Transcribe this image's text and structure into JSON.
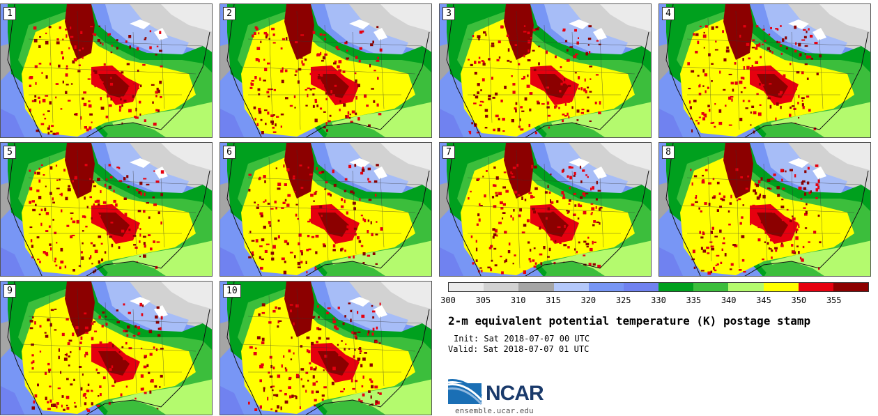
{
  "panels": [
    {
      "label": "1"
    },
    {
      "label": "2"
    },
    {
      "label": "3"
    },
    {
      "label": "4"
    },
    {
      "label": "5"
    },
    {
      "label": "6"
    },
    {
      "label": "7"
    },
    {
      "label": "8"
    },
    {
      "label": "9"
    },
    {
      "label": "10"
    }
  ],
  "colorbar": {
    "colors": [
      "#ebebeb",
      "#d2d2d2",
      "#a5a5a5",
      "#b4c8fa",
      "#7896f5",
      "#7082f0",
      "#00a01e",
      "#3cbe3c",
      "#b4fa6e",
      "#ffff00",
      "#e6000f",
      "#8c0000"
    ],
    "ticks": [
      "300",
      "305",
      "310",
      "315",
      "320",
      "325",
      "330",
      "335",
      "340",
      "345",
      "350",
      "355"
    ]
  },
  "title": "2-m equivalent potential temperature (K) postage stamp",
  "init": "Init: Sat 2018-07-07 00 UTC",
  "valid": "Valid: Sat 2018-07-07 01 UTC",
  "logo": {
    "name": "NCAR",
    "url": "ensemble.ucar.edu"
  }
}
